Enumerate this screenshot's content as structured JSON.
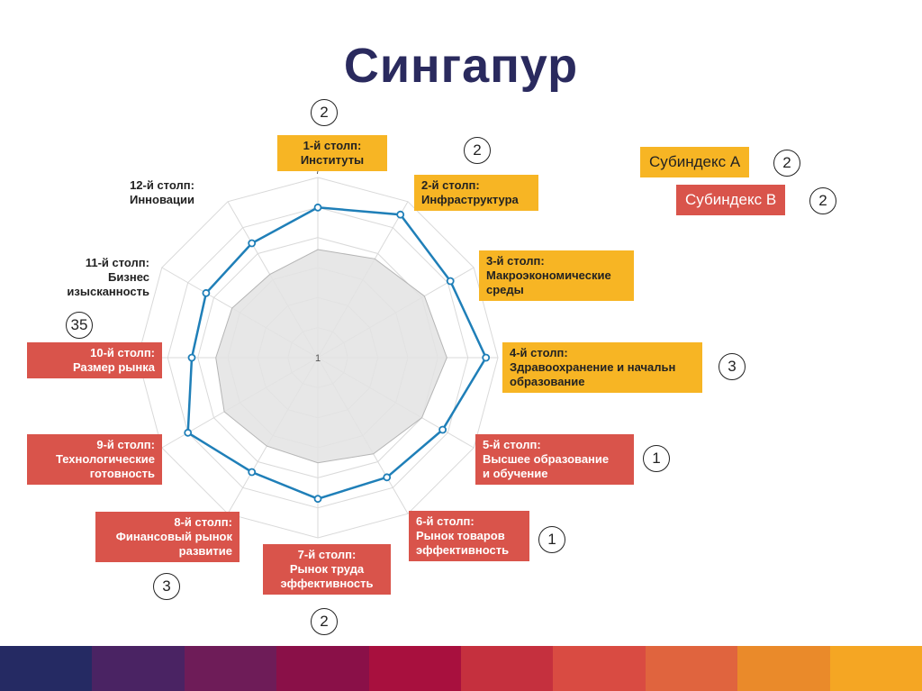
{
  "title": "Сингапур",
  "chart_data": {
    "type": "radar",
    "scale": {
      "min": 1,
      "max": 7,
      "min_label": "1",
      "max_label": "7"
    },
    "axes": [
      {
        "label": "1-й столп:\nИнституты",
        "rank": "2",
        "category": "A"
      },
      {
        "label": "2-й столп:\nИнфраструктура",
        "rank": "2",
        "category": "A"
      },
      {
        "label": "3-й столп:\nМакроэкономические\nсреды",
        "rank": "",
        "category": "A"
      },
      {
        "label": "4-й столп:\nЗдравоохранение и начальн\nобразование",
        "rank": "3",
        "category": "A"
      },
      {
        "label": "5-й столп:\nВысшее образование\nи обучение",
        "rank": "1",
        "category": "B"
      },
      {
        "label": "6-й столп:\nРынок товаров\nэффективность",
        "rank": "1",
        "category": "B"
      },
      {
        "label": "7-й столп:\nРынок труда\nэффективность",
        "rank": "2",
        "category": "B"
      },
      {
        "label": "8-й столп:\nФинансовый рынок\nразвитие",
        "rank": "3",
        "category": "B"
      },
      {
        "label": "9-й столп:\nТехнологические\nготовность",
        "rank": "",
        "category": "B"
      },
      {
        "label": "10-й столп:\nРазмер рынка",
        "rank": "35",
        "category": "B"
      },
      {
        "label": "11-й столп:\nБизнес\nизысканность",
        "rank": "",
        "category": "C"
      },
      {
        "label": "12-й столп:\nИнновации",
        "rank": "",
        "category": "C"
      }
    ],
    "series": [
      {
        "values": [
          6.0,
          6.5,
          6.1,
          6.6,
          5.8,
          5.6,
          5.7,
          5.4,
          6.0,
          5.2,
          5.3,
          5.4
        ],
        "color": "#1f7fb8"
      },
      {
        "values": [
          4.6,
          4.8,
          5.1,
          5.3,
          5.0,
          4.7,
          4.5,
          4.4,
          4.6,
          4.4,
          4.3,
          4.2
        ],
        "color": "#c7c7c7"
      }
    ]
  },
  "subindex": {
    "a": {
      "label": "Субиндекс A",
      "rank": "2",
      "color": "#f7b524"
    },
    "b": {
      "label": "Субиндекс B",
      "rank": "2",
      "color": "#d9544b"
    }
  },
  "colors": {
    "title": "#2a2a5e",
    "grid": "#d9d9d9",
    "category_a": "#f7b524",
    "category_b": "#d9544b",
    "bottom_stripe": [
      "#252a63",
      "#4a2363",
      "#6e1c58",
      "#8a1048",
      "#a8103e",
      "#c5303e",
      "#d94b42",
      "#e0643e",
      "#ea8a2a",
      "#f5a623"
    ]
  }
}
